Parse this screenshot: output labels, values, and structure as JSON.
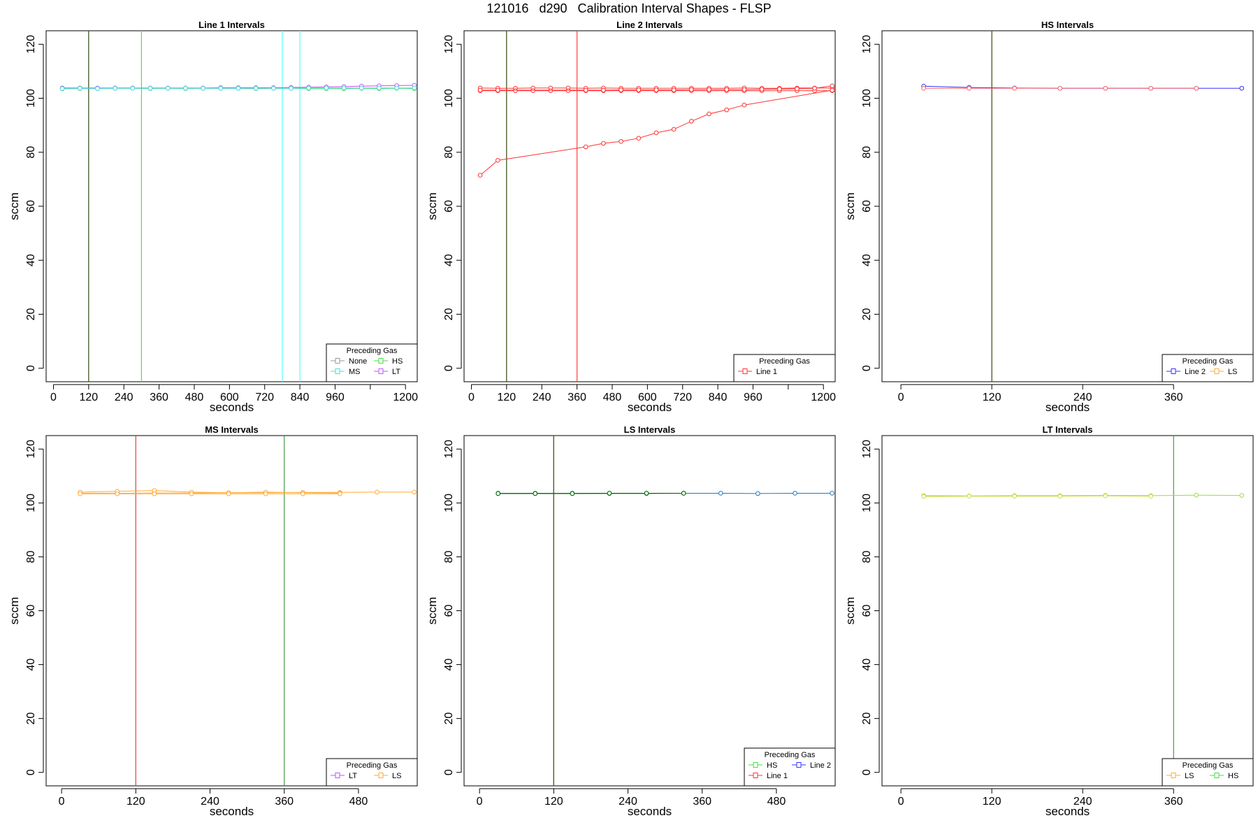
{
  "page": {
    "title": "121016   d290   Calibration Interval Shapes - FLSP"
  },
  "chart_data": [
    {
      "type": "line",
      "title": "Line 1 Intervals",
      "xlabel": "seconds",
      "ylabel": "sccm",
      "xlim": [
        -25,
        1240
      ],
      "ylim": [
        -5,
        125
      ],
      "xticks": [
        0,
        120,
        240,
        360,
        480,
        600,
        720,
        840,
        960,
        1080,
        1200
      ],
      "xtick_labels": [
        "0",
        "120",
        "240",
        "360",
        "480",
        "600",
        "720",
        "840",
        "960",
        "",
        "1200"
      ],
      "yticks": [
        0,
        20,
        40,
        60,
        80,
        100,
        120
      ],
      "vlines": [
        {
          "x": 120,
          "color": "#000000"
        },
        {
          "x": 120,
          "color": "#556b2f"
        },
        {
          "x": 300,
          "color": "#55dd55"
        },
        {
          "x": 780,
          "color": "#55ffff"
        },
        {
          "x": 840,
          "color": "#55ffff"
        }
      ],
      "legend": {
        "title": "Preceding Gas",
        "position": "bottom-right",
        "columns": 2,
        "entries": [
          {
            "label": "None",
            "color": "#999999"
          },
          {
            "label": "HS",
            "color": "#44dd44"
          },
          {
            "label": "MS",
            "color": "#44dddd"
          },
          {
            "label": "LT",
            "color": "#bb55ff"
          }
        ]
      },
      "series": [
        {
          "color": "#999999",
          "x": [
            30,
            90,
            150,
            210,
            270
          ],
          "values": [
            103.8,
            103.8,
            103.7,
            103.8,
            103.8
          ]
        },
        {
          "color": "#44dd44",
          "x": [
            30,
            90,
            150,
            210,
            270,
            330,
            390,
            450,
            510,
            570,
            630,
            690,
            750,
            810,
            870,
            930,
            990,
            1050,
            1110,
            1170,
            1230
          ],
          "values": [
            103.5,
            103.6,
            103.6,
            103.7,
            103.7,
            103.6,
            103.7,
            103.6,
            103.7,
            103.7,
            103.7,
            103.6,
            103.7,
            103.7,
            103.6,
            103.6,
            103.6,
            103.7,
            103.6,
            103.7,
            103.6
          ]
        },
        {
          "color": "#bb55ff",
          "x": [
            30,
            90,
            150,
            210,
            270,
            330,
            390,
            450,
            510,
            570,
            630,
            690,
            750,
            810,
            870,
            930,
            990,
            1050,
            1110,
            1170,
            1230
          ],
          "values": [
            103.8,
            103.8,
            103.8,
            103.8,
            103.8,
            103.8,
            103.8,
            103.8,
            103.8,
            103.9,
            103.9,
            103.9,
            103.9,
            104.0,
            104.1,
            104.2,
            104.3,
            104.5,
            104.6,
            104.7,
            104.8
          ]
        },
        {
          "color": "#44dddd",
          "x": [
            30,
            90,
            150,
            210,
            270,
            330,
            390,
            450,
            510,
            570,
            630,
            690,
            750,
            810,
            870,
            930,
            990,
            1050,
            1110,
            1170,
            1230
          ],
          "values": [
            103.6,
            103.7,
            103.6,
            103.7,
            103.7,
            103.7,
            103.7,
            103.7,
            103.7,
            103.7,
            103.7,
            103.7,
            103.7,
            103.7,
            103.8,
            103.8,
            103.8,
            103.8,
            103.8,
            103.8,
            103.8
          ]
        }
      ]
    },
    {
      "type": "line",
      "title": "Line 2 Intervals",
      "xlabel": "seconds",
      "ylabel": "sccm",
      "xlim": [
        -25,
        1240
      ],
      "ylim": [
        -5,
        125
      ],
      "xticks": [
        0,
        120,
        240,
        360,
        480,
        600,
        720,
        840,
        960,
        1080,
        1200
      ],
      "xtick_labels": [
        "0",
        "120",
        "240",
        "360",
        "480",
        "600",
        "720",
        "840",
        "960",
        "",
        "1200"
      ],
      "yticks": [
        0,
        20,
        40,
        60,
        80,
        100,
        120
      ],
      "vlines": [
        {
          "x": 120,
          "color": "#000000"
        },
        {
          "x": 120,
          "color": "#556b2f"
        },
        {
          "x": 360,
          "color": "#ff4444"
        }
      ],
      "legend": {
        "title": "Preceding Gas",
        "position": "bottom-right",
        "columns": 1,
        "entries": [
          {
            "label": "Line 1",
            "color": "#ff3333"
          }
        ]
      },
      "series": [
        {
          "color": "#ff3333",
          "x": [
            30,
            90,
            150,
            210,
            270,
            330,
            390,
            450,
            510,
            570,
            630,
            690,
            750,
            810,
            870,
            930,
            990,
            1050,
            1110,
            1170,
            1230
          ],
          "values": [
            103.8,
            103.7,
            103.7,
            103.8,
            103.8,
            103.8,
            103.7,
            103.8,
            103.7,
            103.7,
            103.7,
            103.7,
            103.7,
            103.7,
            103.7,
            103.8,
            103.7,
            103.7,
            103.8,
            103.8,
            103.8
          ]
        },
        {
          "color": "#ff3333",
          "x": [
            30,
            90,
            150,
            210,
            270,
            330,
            390,
            450,
            510,
            570,
            630,
            690,
            750,
            810,
            870,
            930,
            990,
            1050,
            1110,
            1170,
            1230
          ],
          "values": [
            102.8,
            102.8,
            102.8,
            102.8,
            102.8,
            102.8,
            102.8,
            102.8,
            102.8,
            102.8,
            102.8,
            102.8,
            102.8,
            102.8,
            102.8,
            102.8,
            102.8,
            102.8,
            102.8,
            102.8,
            102.8
          ]
        },
        {
          "color": "#ff3333",
          "x": [
            30,
            90,
            390,
            450,
            510,
            570,
            630,
            690,
            750,
            810,
            870,
            930,
            990,
            1050,
            1110,
            1170,
            1230
          ],
          "values": [
            103.0,
            103.0,
            103.0,
            103.0,
            103.1,
            103.1,
            103.1,
            103.1,
            103.2,
            103.2,
            103.2,
            103.2,
            103.3,
            103.4,
            103.5,
            103.7,
            104.6
          ]
        },
        {
          "color": "#ff3333",
          "x": [
            30,
            90,
            390,
            450,
            510,
            570,
            630,
            690,
            750,
            810,
            870,
            930,
            1230
          ],
          "values": [
            71.5,
            77.0,
            82.0,
            83.3,
            84.0,
            85.2,
            87.2,
            88.5,
            91.5,
            94.2,
            95.7,
            97.5,
            103.0
          ]
        }
      ]
    },
    {
      "type": "line",
      "title": "HS Intervals",
      "xlabel": "seconds",
      "ylabel": "sccm",
      "xlim": [
        -25,
        465
      ],
      "ylim": [
        -5,
        125
      ],
      "xticks": [
        0,
        120,
        240,
        360
      ],
      "xtick_labels": [
        "0",
        "120",
        "240",
        "360"
      ],
      "yticks": [
        0,
        20,
        40,
        60,
        80,
        100,
        120
      ],
      "vlines": [
        {
          "x": 120,
          "color": "#000000"
        },
        {
          "x": 120,
          "color": "#556b2f"
        }
      ],
      "legend": {
        "title": "Preceding Gas",
        "position": "bottom-right",
        "columns": 2,
        "entries": [
          {
            "label": "Line 2",
            "color": "#3333ff"
          },
          {
            "label": "LS",
            "color": "#ffaa33"
          }
        ]
      },
      "series": [
        {
          "color": "#3333ff",
          "x": [
            30,
            90,
            150,
            210,
            270,
            330,
            390,
            450
          ],
          "values": [
            104.5,
            104.0,
            103.8,
            103.7,
            103.7,
            103.7,
            103.7,
            103.7
          ]
        },
        {
          "color": "#ff6a6a",
          "x": [
            30,
            90,
            150,
            210,
            270,
            330,
            390
          ],
          "values": [
            103.7,
            103.7,
            103.7,
            103.7,
            103.7,
            103.7,
            103.7
          ]
        }
      ]
    },
    {
      "type": "line",
      "title": "MS Intervals",
      "xlabel": "seconds",
      "ylabel": "sccm",
      "xlim": [
        -25,
        575
      ],
      "ylim": [
        -5,
        125
      ],
      "xticks": [
        0,
        120,
        240,
        360,
        480
      ],
      "xtick_labels": [
        "0",
        "120",
        "240",
        "360",
        "480"
      ],
      "yticks": [
        0,
        20,
        40,
        60,
        80,
        100,
        120
      ],
      "vlines": [
        {
          "x": 120,
          "color": "#cc4444"
        },
        {
          "x": 360,
          "color": "#449944"
        }
      ],
      "legend": {
        "title": "Preceding Gas",
        "position": "bottom-right",
        "columns": 2,
        "entries": [
          {
            "label": "LT",
            "color": "#bb55ff"
          },
          {
            "label": "LS",
            "color": "#ffaa33"
          }
        ]
      },
      "series": [
        {
          "color": "#ffaa33",
          "x": [
            30,
            90,
            150,
            210,
            270,
            330,
            390,
            450,
            510,
            570
          ],
          "values": [
            103.6,
            103.6,
            103.7,
            103.7,
            103.8,
            103.8,
            103.9,
            103.9,
            104.0,
            104.0
          ]
        },
        {
          "color": "#ffaa33",
          "x": [
            30,
            90,
            150,
            210,
            270,
            330,
            390,
            450
          ],
          "values": [
            104.0,
            104.3,
            104.6,
            104.0,
            103.8,
            104.0,
            103.8,
            103.7
          ]
        },
        {
          "color": "#ffaa33",
          "x": [
            30,
            90,
            150,
            210,
            270,
            330,
            390,
            450
          ],
          "values": [
            103.4,
            103.4,
            103.4,
            103.4,
            103.4,
            103.4,
            103.4,
            103.4
          ]
        }
      ]
    },
    {
      "type": "line",
      "title": "LS Intervals",
      "xlabel": "seconds",
      "ylabel": "sccm",
      "xlim": [
        -25,
        575
      ],
      "ylim": [
        -5,
        125
      ],
      "xticks": [
        0,
        120,
        240,
        360,
        480
      ],
      "xtick_labels": [
        "0",
        "120",
        "240",
        "360",
        "480"
      ],
      "yticks": [
        0,
        20,
        40,
        60,
        80,
        100,
        120
      ],
      "vlines": [
        {
          "x": 120,
          "color": "#000000"
        },
        {
          "x": 120,
          "color": "#556b2f"
        }
      ],
      "legend": {
        "title": "Preceding Gas",
        "position": "bottom-right",
        "columns": 2,
        "entries": [
          {
            "label": "HS",
            "color": "#44dd44"
          },
          {
            "label": "Line 2",
            "color": "#3333ff"
          },
          {
            "label": "Line 1",
            "color": "#ff3333"
          }
        ]
      },
      "series": [
        {
          "color": "#2277bb",
          "x": [
            30,
            90,
            150,
            210,
            270,
            330,
            390,
            450,
            510,
            570
          ],
          "values": [
            103.6,
            103.6,
            103.6,
            103.6,
            103.6,
            103.6,
            103.6,
            103.5,
            103.6,
            103.6
          ]
        },
        {
          "color": "#119911",
          "x": [
            30,
            90,
            150,
            210,
            270,
            330
          ],
          "values": [
            103.5,
            103.5,
            103.5,
            103.5,
            103.5,
            103.6
          ]
        },
        {
          "color": "#006600",
          "x": [
            30,
            90,
            150,
            210,
            270,
            330
          ],
          "values": [
            103.5,
            103.5,
            103.5,
            103.6,
            103.6,
            103.6
          ]
        }
      ]
    },
    {
      "type": "line",
      "title": "LT Intervals",
      "xlabel": "seconds",
      "ylabel": "sccm",
      "xlim": [
        -25,
        465
      ],
      "ylim": [
        -5,
        125
      ],
      "xticks": [
        0,
        120,
        240,
        360
      ],
      "xtick_labels": [
        "0",
        "120",
        "240",
        "360"
      ],
      "yticks": [
        0,
        20,
        40,
        60,
        80,
        100,
        120
      ],
      "vlines": [
        {
          "x": 360,
          "color": "#449944"
        }
      ],
      "legend": {
        "title": "Preceding Gas",
        "position": "bottom-right",
        "columns": 2,
        "entries": [
          {
            "label": "LS",
            "color": "#ffaa33"
          },
          {
            "label": "HS",
            "color": "#44dd44"
          }
        ]
      },
      "series": [
        {
          "color": "#99dd44",
          "x": [
            30,
            90,
            150,
            210,
            270,
            330,
            390,
            450
          ],
          "values": [
            102.7,
            102.6,
            102.7,
            102.7,
            102.8,
            102.7,
            102.9,
            102.8
          ]
        },
        {
          "color": "#ccdd44",
          "x": [
            30,
            90,
            150,
            210,
            270,
            330
          ],
          "values": [
            102.4,
            102.5,
            102.5,
            102.5,
            102.6,
            102.5
          ]
        }
      ]
    }
  ]
}
